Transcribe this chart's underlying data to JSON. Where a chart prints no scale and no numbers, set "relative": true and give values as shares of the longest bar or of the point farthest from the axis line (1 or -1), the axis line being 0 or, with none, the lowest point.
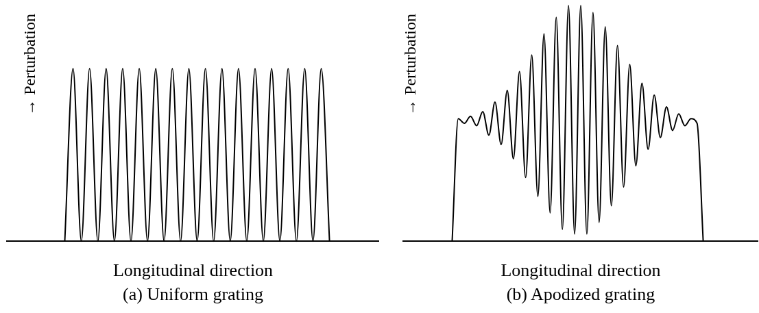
{
  "chart_data": [
    {
      "type": "line",
      "title": "(a) Uniform grating",
      "xlabel": "Longitudinal direction",
      "ylabel": "→ Perturbation",
      "relative": true,
      "grid": false,
      "legend": false,
      "marker": "none",
      "categories": [
        null,
        null,
        null,
        null,
        null,
        null,
        null,
        null,
        null,
        null,
        null,
        null,
        null,
        null,
        null,
        null,
        null,
        null,
        null,
        null,
        null,
        null,
        null,
        null,
        null,
        null,
        null,
        null,
        null,
        null,
        null,
        null,
        null,
        null,
        null,
        null,
        null,
        null,
        null,
        null,
        null,
        null,
        null,
        null,
        null,
        null
      ],
      "series": [
        {
          "color": "#000000",
          "values": [
            null,
            null,
            null,
            null,
            null,
            null,
            null,
            0,
            1,
            0,
            1,
            0,
            1,
            0,
            1,
            0,
            1,
            0,
            1,
            0,
            1,
            0,
            1,
            0,
            1,
            0,
            1,
            0,
            1,
            0,
            1,
            0,
            1,
            0,
            1,
            0,
            1,
            0,
            1,
            0,
            null,
            null,
            null,
            null,
            null,
            null
          ]
        }
      ]
    },
    {
      "type": "line",
      "title": "(b) Apodized grating",
      "xlabel": "Longitudinal direction",
      "ylabel": "→ Perturbation",
      "relative": true,
      "grid": false,
      "legend": false,
      "marker": "none",
      "categories": [
        null,
        null,
        null,
        null,
        null,
        null,
        null,
        null,
        null,
        null,
        null,
        null,
        null,
        null,
        null,
        null,
        null,
        null,
        null,
        null,
        null,
        null,
        null,
        null,
        null,
        null,
        null,
        null,
        null,
        null,
        null,
        null,
        null,
        null,
        null,
        null,
        null,
        null,
        null,
        null,
        null,
        null,
        null,
        null,
        null,
        null,
        null,
        null,
        null,
        null,
        null,
        null,
        null,
        null,
        null,
        null,
        null,
        null,
        null
      ],
      "series": [
        {
          "color": "#000000",
          "values": [
            null,
            null,
            null,
            null,
            null,
            null,
            null,
            null,
            0,
            0.52,
            0.5,
            0.53,
            0.49,
            0.55,
            0.45,
            0.59,
            0.41,
            0.64,
            0.35,
            0.72,
            0.27,
            0.79,
            0.19,
            0.88,
            0.12,
            0.95,
            0.05,
            1,
            0.03,
            1,
            0.03,
            0.97,
            0.08,
            0.91,
            0.15,
            0.83,
            0.23,
            0.75,
            0.32,
            0.67,
            0.39,
            0.62,
            0.44,
            0.57,
            0.47,
            0.54,
            0.49,
            0.52,
            0.5,
            0,
            null,
            null,
            null,
            null,
            null,
            null,
            null,
            null,
            null
          ]
        }
      ]
    }
  ]
}
